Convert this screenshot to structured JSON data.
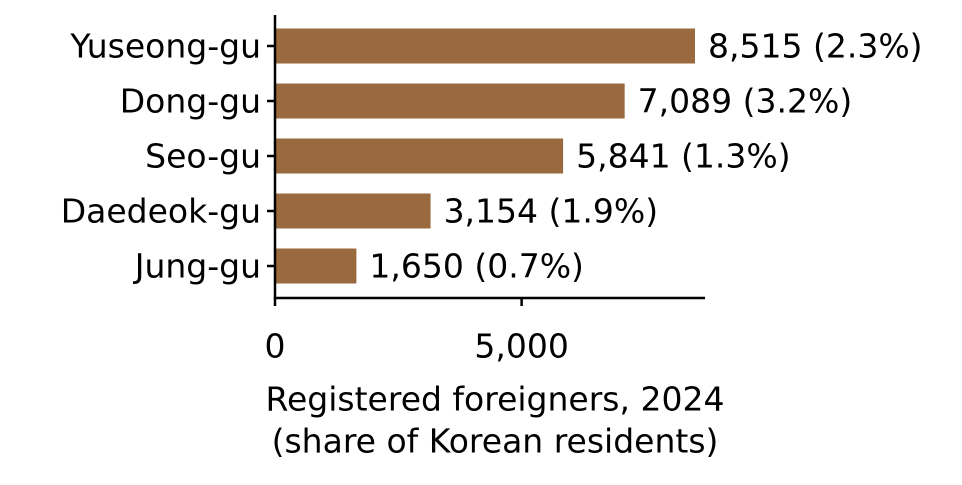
{
  "chart_data": {
    "type": "bar",
    "orientation": "horizontal",
    "categories": [
      "Yuseong-gu",
      "Dong-gu",
      "Seo-gu",
      "Daedeok-gu",
      "Jung-gu"
    ],
    "values": [
      8515,
      7089,
      5841,
      3154,
      1650
    ],
    "data_labels": [
      "8,515 (2.3%)",
      "7,089 (3.2%)",
      "5,841 (1.3%)",
      "3,154 (1.9%)",
      "1,650 (0.7%)"
    ],
    "title": "",
    "xlabel_lines": [
      "Registered foreigners, 2024",
      "(share of Korean residents)"
    ],
    "ylabel": "",
    "xlim": [
      0,
      8800
    ],
    "xticks": [
      0,
      5000
    ],
    "xtick_labels": [
      "0",
      "5,000"
    ],
    "grid": false,
    "legend": "none",
    "bar_color": "#996a3e"
  }
}
